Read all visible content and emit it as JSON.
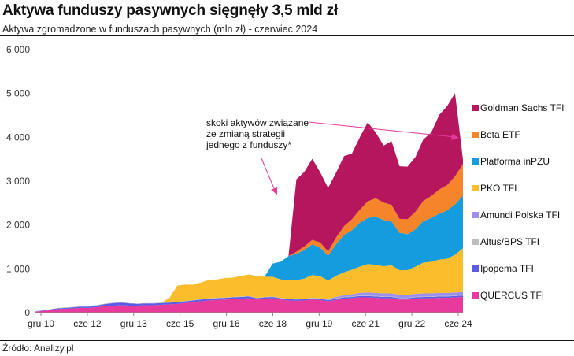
{
  "title": "Aktywa funduszy pasywnych sięgnęły 3,5 mld zł",
  "subtitle": "Aktywa zgromadzone w funduszach pasywnych (mln zł) -   czerwiec 2024",
  "source": "Źródło: Analizy.pl",
  "chart_data": {
    "type": "area",
    "stacked": true,
    "title": "Aktywa funduszy pasywnych sięgnęły 3,5 mld zł",
    "ylabel": "",
    "xlabel": "",
    "ylim": [
      0,
      6000
    ],
    "y_ticks": [
      0,
      1000,
      2000,
      3000,
      4000,
      5000,
      6000
    ],
    "y_tick_labels": [
      "0",
      "1 000",
      "2 000",
      "3 000",
      "4 000",
      "5 000",
      "6 000"
    ],
    "x_tick_labels": [
      "gru 10",
      "cze 12",
      "gru 13",
      "cze 15",
      "gru 16",
      "cze 18",
      "gru 19",
      "cze 21",
      "gru 22",
      "cze 24"
    ],
    "x_start": "2010-12",
    "x_end": "2024-06",
    "grid": false,
    "legend_placement": "right",
    "annotation": [
      "skoki aktywów związane",
      "ze zmianą strategii",
      "jednego z funduszy*"
    ],
    "x": [
      "2010-12",
      "2011-03",
      "2011-06",
      "2011-09",
      "2011-12",
      "2012-03",
      "2012-06",
      "2012-09",
      "2012-12",
      "2013-03",
      "2013-06",
      "2013-09",
      "2013-12",
      "2014-03",
      "2014-06",
      "2014-09",
      "2014-12",
      "2015-03",
      "2015-06",
      "2015-09",
      "2015-12",
      "2016-03",
      "2016-06",
      "2016-09",
      "2016-12",
      "2017-03",
      "2017-06",
      "2017-09",
      "2017-12",
      "2018-03",
      "2018-06",
      "2018-09",
      "2018-12",
      "2019-03",
      "2019-06",
      "2019-09",
      "2019-12",
      "2020-03",
      "2020-06",
      "2020-09",
      "2020-12",
      "2021-03",
      "2021-06",
      "2021-09",
      "2021-12",
      "2022-03",
      "2022-06",
      "2022-09",
      "2022-12",
      "2023-03",
      "2023-06",
      "2023-09",
      "2023-12",
      "2024-03",
      "2024-06"
    ],
    "series": [
      {
        "name": "QUERCUS TFI",
        "color": "#e8399c",
        "values": [
          20,
          40,
          60,
          80,
          90,
          100,
          110,
          110,
          130,
          150,
          160,
          170,
          160,
          160,
          170,
          170,
          180,
          190,
          200,
          220,
          240,
          260,
          280,
          290,
          300,
          310,
          320,
          330,
          300,
          320,
          330,
          300,
          280,
          270,
          280,
          300,
          290,
          260,
          290,
          320,
          330,
          350,
          350,
          340,
          330,
          330,
          300,
          300,
          320,
          330,
          330,
          340,
          340,
          350,
          360
        ]
      },
      {
        "name": "Ipopema TFI",
        "color": "#5b5be8",
        "values": [
          5,
          10,
          15,
          20,
          20,
          25,
          30,
          30,
          40,
          50,
          60,
          60,
          50,
          40,
          40,
          40,
          40,
          40,
          40,
          40,
          40,
          40,
          40,
          40,
          40,
          40,
          40,
          40,
          30,
          30,
          30,
          30,
          30,
          30,
          30,
          30,
          30,
          25,
          30,
          30,
          30,
          30,
          30,
          30,
          30,
          30,
          30,
          30,
          30,
          30,
          30,
          30,
          30,
          30,
          30
        ]
      },
      {
        "name": "Altus/BPS TFI",
        "color": "#bdbdbd",
        "values": [
          5,
          5,
          5,
          10,
          10,
          10,
          10,
          10,
          10,
          10,
          10,
          10,
          10,
          10,
          10,
          10,
          10,
          10,
          10,
          10,
          10,
          10,
          10,
          10,
          10,
          10,
          10,
          10,
          10,
          10,
          10,
          10,
          10,
          10,
          10,
          10,
          10,
          10,
          10,
          10,
          10,
          10,
          10,
          10,
          10,
          10,
          10,
          10,
          10,
          10,
          10,
          10,
          10,
          10,
          10
        ]
      },
      {
        "name": "Amundi Polska TFI",
        "color": "#9b8ff0",
        "values": [
          0,
          0,
          0,
          0,
          0,
          0,
          0,
          0,
          0,
          0,
          0,
          0,
          0,
          0,
          0,
          0,
          0,
          0,
          0,
          0,
          0,
          0,
          0,
          0,
          0,
          0,
          0,
          0,
          0,
          0,
          0,
          0,
          0,
          0,
          0,
          0,
          0,
          20,
          30,
          40,
          50,
          60,
          70,
          70,
          70,
          70,
          70,
          70,
          70,
          70,
          70,
          70,
          70,
          70,
          70
        ]
      },
      {
        "name": "PKO TFI",
        "color": "#fbbd2b",
        "values": [
          0,
          0,
          0,
          0,
          0,
          0,
          0,
          0,
          0,
          0,
          0,
          0,
          0,
          0,
          0,
          0,
          0,
          100,
          370,
          370,
          350,
          380,
          420,
          420,
          440,
          440,
          470,
          490,
          500,
          460,
          450,
          420,
          420,
          430,
          460,
          520,
          500,
          420,
          480,
          520,
          560,
          600,
          650,
          640,
          620,
          640,
          560,
          560,
          620,
          700,
          720,
          760,
          780,
          860,
          1000
        ]
      },
      {
        "name": "Platforma inPZU",
        "color": "#149cde",
        "values": [
          0,
          0,
          0,
          0,
          0,
          0,
          0,
          0,
          0,
          0,
          0,
          0,
          0,
          0,
          0,
          0,
          0,
          0,
          0,
          0,
          0,
          0,
          0,
          0,
          0,
          0,
          0,
          0,
          0,
          0,
          300,
          400,
          550,
          600,
          650,
          700,
          650,
          560,
          720,
          850,
          900,
          1000,
          1050,
          1100,
          1050,
          1000,
          850,
          820,
          850,
          950,
          1000,
          1050,
          1100,
          1150,
          1200
        ]
      },
      {
        "name": "Beta ETF",
        "color": "#f5842a",
        "values": [
          0,
          0,
          0,
          0,
          0,
          0,
          0,
          0,
          0,
          0,
          0,
          0,
          0,
          0,
          0,
          0,
          0,
          0,
          0,
          0,
          0,
          0,
          0,
          0,
          0,
          0,
          0,
          0,
          0,
          0,
          0,
          0,
          0,
          50,
          80,
          100,
          120,
          100,
          150,
          200,
          250,
          300,
          380,
          420,
          400,
          380,
          320,
          340,
          400,
          460,
          500,
          550,
          580,
          640,
          720
        ]
      },
      {
        "name": "Goldman Sachs TFI",
        "color": "#b5165d",
        "values": [
          0,
          0,
          0,
          0,
          0,
          0,
          0,
          0,
          0,
          0,
          0,
          0,
          0,
          0,
          0,
          0,
          0,
          0,
          0,
          0,
          0,
          0,
          0,
          0,
          0,
          0,
          0,
          0,
          0,
          0,
          0,
          0,
          0,
          1650,
          1700,
          1850,
          1600,
          1450,
          1480,
          1600,
          1500,
          1650,
          1800,
          1500,
          1300,
          1450,
          1200,
          1200,
          1250,
          1400,
          1450,
          1700,
          1800,
          1900,
          100
        ]
      }
    ]
  }
}
